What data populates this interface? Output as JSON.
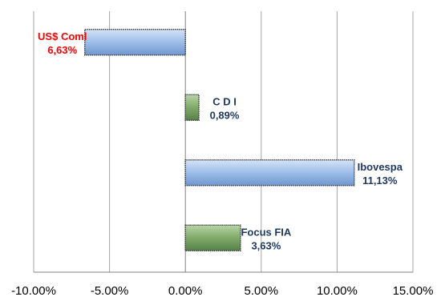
{
  "chart_data": {
    "type": "bar",
    "orientation": "horizontal",
    "categories": [
      "US$ Coml",
      "C D I",
      "Ibovespa",
      "Focus FIA"
    ],
    "values": [
      -6.63,
      0.89,
      11.13,
      3.63
    ],
    "value_labels": [
      "6,63%",
      "0,89%",
      "11,13%",
      "3,63%"
    ],
    "xlim": [
      -10,
      15
    ],
    "x_ticks": [
      -10,
      -5,
      0,
      5,
      10,
      15
    ],
    "x_tick_labels": [
      "-10.00%",
      "-5.00%",
      "0.00%",
      "5.00%",
      "10.00%",
      "15.00%"
    ],
    "grid": "vertical lines at each x tick",
    "legend": "none",
    "title": "",
    "xlabel": "",
    "ylabel": "",
    "bar_colors": [
      "#9dbde8",
      "#7faa68",
      "#9dbde8",
      "#7faa68"
    ],
    "label_colors": [
      "#ff0000",
      "#1f3864",
      "#1f3864",
      "#1f3864"
    ]
  }
}
